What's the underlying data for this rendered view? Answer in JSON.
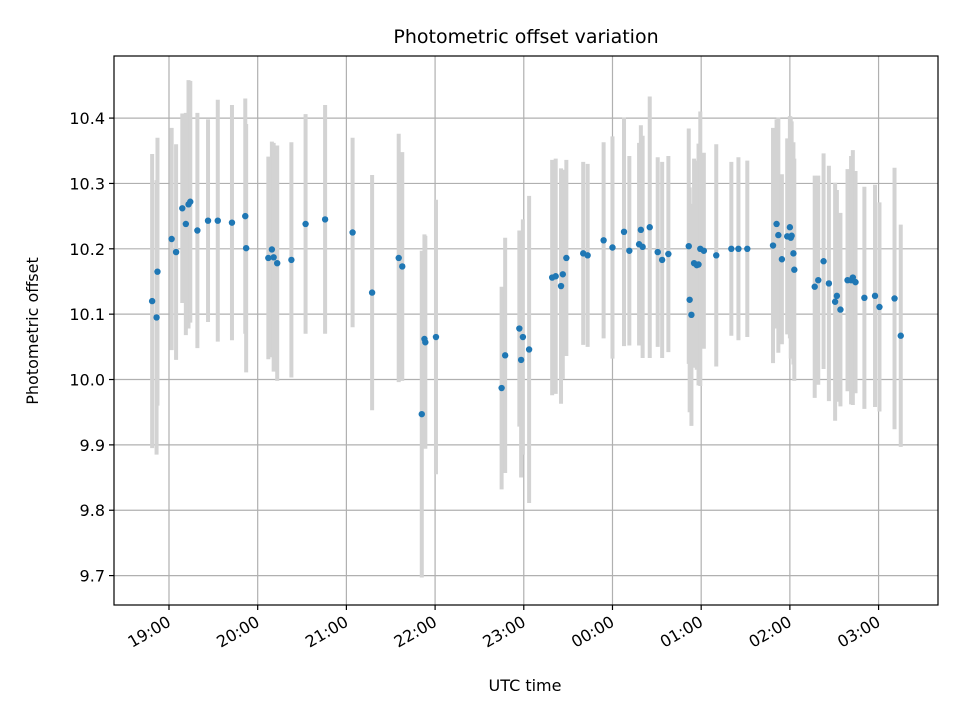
{
  "chart_data": {
    "type": "scatter",
    "title": "Photometric offset variation",
    "xlabel": "UTC time",
    "ylabel": "Photometric offset",
    "xlim": [
      18.38,
      27.67
    ],
    "ylim": [
      9.655,
      10.495
    ],
    "grid": true,
    "x_ticks": [
      19,
      20,
      21,
      22,
      23,
      24,
      25,
      26,
      27
    ],
    "x_tick_labels": [
      "19:00",
      "20:00",
      "21:00",
      "22:00",
      "23:00",
      "00:00",
      "01:00",
      "02:00",
      "03:00"
    ],
    "y_ticks": [
      9.7,
      9.8,
      9.9,
      10.0,
      10.1,
      10.2,
      10.3,
      10.4
    ],
    "y_tick_labels": [
      "9.7",
      "9.8",
      "9.9",
      "10.0",
      "10.1",
      "10.2",
      "10.3",
      "10.4"
    ],
    "colors": {
      "point": "#1f77b4",
      "errorbar": "#d3d3d3",
      "grid": "#b0b0b0"
    },
    "series": [
      {
        "name": "offset",
        "x": [
          18.81,
          18.86,
          18.87,
          19.03,
          19.08,
          19.15,
          19.19,
          19.22,
          19.24,
          19.32,
          19.44,
          19.55,
          19.71,
          19.86,
          19.87,
          20.12,
          20.16,
          20.18,
          20.22,
          20.38,
          20.54,
          20.76,
          21.07,
          21.29,
          21.59,
          21.63,
          21.85,
          21.88,
          21.89,
          22.01,
          22.75,
          22.79,
          22.95,
          22.97,
          22.99,
          23.06,
          23.32,
          23.36,
          23.42,
          23.44,
          23.48,
          23.67,
          23.72,
          23.9,
          24.0,
          24.13,
          24.19,
          24.3,
          24.32,
          24.34,
          24.42,
          24.51,
          24.56,
          24.63,
          24.86,
          24.87,
          24.89,
          24.92,
          24.95,
          24.97,
          24.99,
          25.03,
          25.17,
          25.34,
          25.42,
          25.52,
          25.81,
          25.85,
          25.87,
          25.91,
          25.97,
          26.0,
          26.01,
          26.02,
          26.04,
          26.05,
          26.28,
          26.32,
          26.38,
          26.44,
          26.51,
          26.53,
          26.57,
          26.65,
          26.69,
          26.71,
          26.74,
          26.84,
          26.96,
          27.01,
          27.18,
          27.25
        ],
        "y": [
          10.12,
          10.095,
          10.165,
          10.215,
          10.195,
          10.262,
          10.238,
          10.268,
          10.272,
          10.228,
          10.243,
          10.243,
          10.24,
          10.25,
          10.201,
          10.186,
          10.199,
          10.187,
          10.178,
          10.183,
          10.238,
          10.245,
          10.225,
          10.133,
          10.186,
          10.173,
          9.947,
          10.062,
          10.057,
          10.065,
          9.987,
          10.037,
          10.078,
          10.03,
          10.065,
          10.046,
          10.156,
          10.158,
          10.143,
          10.161,
          10.186,
          10.193,
          10.19,
          10.213,
          10.202,
          10.226,
          10.197,
          10.207,
          10.229,
          10.203,
          10.233,
          10.195,
          10.183,
          10.192,
          10.204,
          10.122,
          10.099,
          10.178,
          10.175,
          10.176,
          10.2,
          10.197,
          10.19,
          10.2,
          10.2,
          10.2,
          10.205,
          10.238,
          10.221,
          10.184,
          10.219,
          10.233,
          10.217,
          10.22,
          10.193,
          10.168,
          10.142,
          10.152,
          10.181,
          10.147,
          10.119,
          10.128,
          10.107,
          10.152,
          10.152,
          10.156,
          10.149,
          10.125,
          10.128,
          10.111,
          10.124,
          10.067
        ],
        "err": [
          0.225,
          0.21,
          0.205,
          0.17,
          0.165,
          0.145,
          0.17,
          0.19,
          0.185,
          0.18,
          0.155,
          0.185,
          0.18,
          0.18,
          0.19,
          0.155,
          0.165,
          0.175,
          0.18,
          0.18,
          0.168,
          0.175,
          0.145,
          0.18,
          0.19,
          0.175,
          0.25,
          0.16,
          0.163,
          0.21,
          0.155,
          0.18,
          0.15,
          0.18,
          0.18,
          0.235,
          0.18,
          0.18,
          0.18,
          0.16,
          0.15,
          0.14,
          0.14,
          0.15,
          0.17,
          0.175,
          0.145,
          0.155,
          0.16,
          0.17,
          0.2,
          0.145,
          0.15,
          0.15,
          0.18,
          0.172,
          0.17,
          0.16,
          0.16,
          0.185,
          0.21,
          0.15,
          0.17,
          0.133,
          0.14,
          0.135,
          0.18,
          0.16,
          0.18,
          0.13,
          0.15,
          0.17,
          0.185,
          0.175,
          0.17,
          0.17,
          0.17,
          0.16,
          0.165,
          0.18,
          0.182,
          0.162,
          0.148,
          0.17,
          0.19,
          0.195,
          0.17,
          0.17,
          0.17,
          0.16,
          0.2,
          0.17
        ]
      }
    ]
  }
}
